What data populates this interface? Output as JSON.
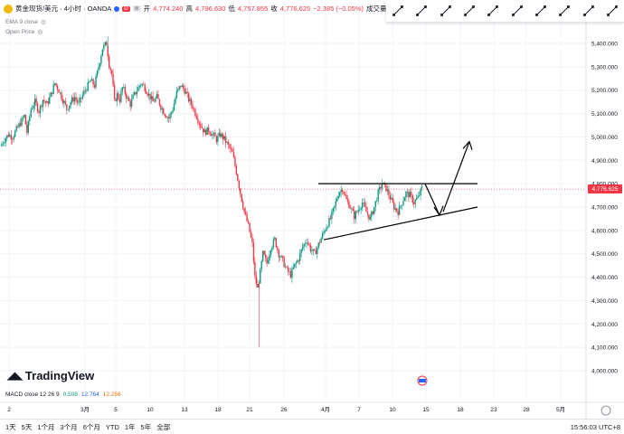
{
  "legend": {
    "symbol": "黄金现货/美元 · 4小时 · OANDA",
    "open_label": "开",
    "open": "4,774.240",
    "high_label": "高",
    "high": "4,796.630",
    "low_label": "低",
    "low": "4,757.855",
    "close_label": "收",
    "close": "4,776.625",
    "change": "−2.385 (−0.05%)",
    "extra": "成交量"
  },
  "ema_label": "EMA 9 close",
  "openprice_label": "Open Price",
  "tradingview": "TradingView",
  "macd": {
    "label": "MACD close 12 26 9",
    "v1": "0.508",
    "v2": "12.764",
    "v3": "12.256",
    "c1": "#089981",
    "c2": "#2962ff",
    "c3": "#ff6d00"
  },
  "price_label": "4,776.625",
  "ranges": [
    "1天",
    "5天",
    "1个月",
    "3个月",
    "6个月",
    "YTD",
    "1年",
    "5年",
    "全部"
  ],
  "timezone": "15:56:03 UTC+8",
  "toolbar_icons": [
    "trend-line-icon",
    "ray-icon",
    "extended-line-icon",
    "info-line-icon",
    "trend-angle-icon",
    "horizontal-line-icon",
    "horizontal-ray-icon",
    "vertical-line-icon",
    "cross-line-icon",
    "channel-icon"
  ],
  "colors": {
    "up": "#089981",
    "down": "#f23645",
    "grid": "#f0f3fa",
    "text": "#131722"
  },
  "chart_data": {
    "type": "candlestick",
    "ylim": [
      4000000,
      5500000
    ],
    "y_ticks": [
      "5,400.000",
      "5,300.000",
      "5,200.000",
      "5,100.000",
      "5,000.000",
      "4,900.000",
      "4,800.000",
      "4,700.000",
      "4,600.000",
      "4,500.000",
      "4,400.000",
      "4,300.000",
      "4,200.000",
      "4,100.000",
      "4,000.000"
    ],
    "x_ticks": [
      "2",
      "3月",
      "5",
      "10",
      "13",
      "18",
      "21",
      "26",
      "4月",
      "7",
      "10",
      "15",
      "18",
      "23",
      "28",
      "5月"
    ],
    "close_path": [
      [
        0,
        4960
      ],
      [
        3,
        4990
      ],
      [
        6,
        5010
      ],
      [
        9,
        5000
      ],
      [
        12,
        5030
      ],
      [
        15,
        5060
      ],
      [
        18,
        5090
      ],
      [
        20,
        5020
      ],
      [
        23,
        5120
      ],
      [
        26,
        5150
      ],
      [
        29,
        5110
      ],
      [
        32,
        5160
      ],
      [
        35,
        5140
      ],
      [
        38,
        5180
      ],
      [
        41,
        5230
      ],
      [
        44,
        5200
      ],
      [
        47,
        5160
      ],
      [
        50,
        5120
      ],
      [
        53,
        5150
      ],
      [
        56,
        5170
      ],
      [
        59,
        5140
      ],
      [
        62,
        5180
      ],
      [
        65,
        5210
      ],
      [
        68,
        5240
      ],
      [
        71,
        5220
      ],
      [
        74,
        5300
      ],
      [
        77,
        5380
      ],
      [
        80,
        5400
      ],
      [
        82,
        5310
      ],
      [
        84,
        5270
      ],
      [
        86,
        5150
      ],
      [
        88,
        5180
      ],
      [
        90,
        5160
      ],
      [
        92,
        5210
      ],
      [
        94,
        5190
      ],
      [
        96,
        5160
      ],
      [
        98,
        5140
      ],
      [
        100,
        5170
      ],
      [
        103,
        5200
      ],
      [
        106,
        5230
      ],
      [
        109,
        5210
      ],
      [
        112,
        5180
      ],
      [
        115,
        5150
      ],
      [
        118,
        5170
      ],
      [
        121,
        5130
      ],
      [
        124,
        5100
      ],
      [
        127,
        5080
      ],
      [
        130,
        5120
      ],
      [
        133,
        5190
      ],
      [
        136,
        5220
      ],
      [
        139,
        5200
      ],
      [
        142,
        5160
      ],
      [
        145,
        5130
      ],
      [
        148,
        5090
      ],
      [
        151,
        5050
      ],
      [
        154,
        5020
      ],
      [
        157,
        5030
      ],
      [
        160,
        5010
      ],
      [
        163,
        4990
      ],
      [
        166,
        5010
      ],
      [
        169,
        4990
      ],
      [
        172,
        4960
      ],
      [
        175,
        4930
      ],
      [
        178,
        4850
      ],
      [
        181,
        4760
      ],
      [
        184,
        4680
      ],
      [
        187,
        4620
      ],
      [
        190,
        4540
      ],
      [
        192,
        4400
      ],
      [
        194,
        4350
      ],
      [
        196,
        4420
      ],
      [
        198,
        4500
      ],
      [
        201,
        4460
      ],
      [
        204,
        4530
      ],
      [
        207,
        4560
      ],
      [
        210,
        4500
      ],
      [
        213,
        4470
      ],
      [
        216,
        4430
      ],
      [
        219,
        4410
      ],
      [
        222,
        4450
      ],
      [
        225,
        4480
      ],
      [
        228,
        4530
      ],
      [
        231,
        4560
      ],
      [
        234,
        4520
      ],
      [
        237,
        4500
      ],
      [
        240,
        4540
      ],
      [
        243,
        4580
      ],
      [
        246,
        4620
      ],
      [
        249,
        4650
      ],
      [
        252,
        4700
      ],
      [
        255,
        4760
      ],
      [
        258,
        4780
      ],
      [
        261,
        4730
      ],
      [
        264,
        4700
      ],
      [
        267,
        4660
      ],
      [
        270,
        4690
      ],
      [
        273,
        4720
      ],
      [
        276,
        4680
      ],
      [
        279,
        4650
      ],
      [
        282,
        4700
      ],
      [
        285,
        4760
      ],
      [
        288,
        4800
      ],
      [
        291,
        4780
      ],
      [
        294,
        4740
      ],
      [
        297,
        4700
      ],
      [
        300,
        4680
      ],
      [
        303,
        4720
      ],
      [
        306,
        4760
      ],
      [
        309,
        4750
      ],
      [
        312,
        4720
      ],
      [
        315,
        4740
      ],
      [
        318,
        4780
      ]
    ],
    "annotations": {
      "resistance": [
        [
          4800,
          4800
        ]
      ],
      "support_rising": [
        [
          4560,
          4700
        ]
      ],
      "arrows": [
        "down-to-support",
        "up-breakout"
      ]
    }
  }
}
